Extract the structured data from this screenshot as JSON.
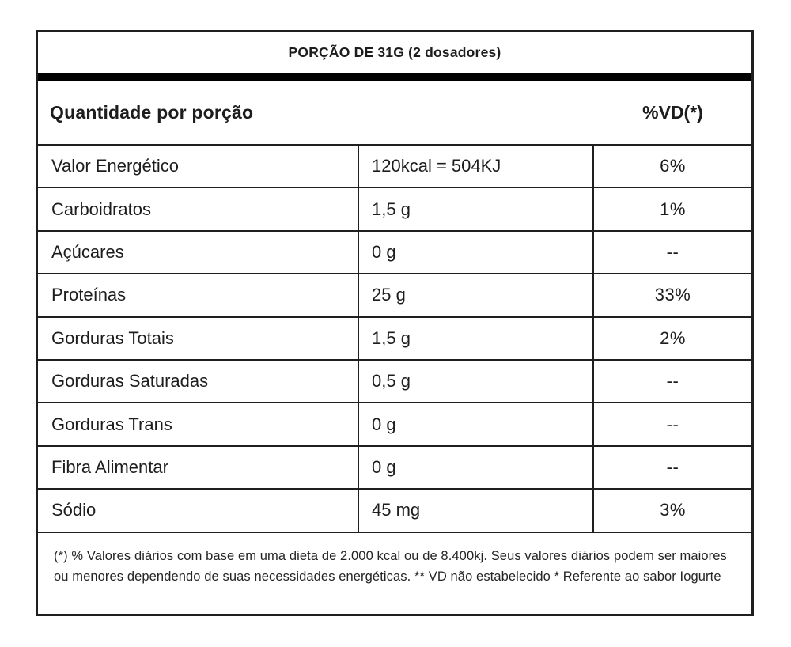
{
  "header": {
    "portion_title": "PORÇÃO DE 31G (2 dosadores)",
    "quantity_column_label": "Quantidade por porção",
    "dv_column_label": "%VD(*)"
  },
  "rows": [
    {
      "label": "Valor Energético",
      "value": "120kcal = 504KJ",
      "vd": "6%"
    },
    {
      "label": "Carboidratos",
      "value": "1,5 g",
      "vd": "1%"
    },
    {
      "label": "Açúcares",
      "value": "0 g",
      "vd": "--"
    },
    {
      "label": "Proteínas",
      "value": "25 g",
      "vd": "33%"
    },
    {
      "label": "Gorduras Totais",
      "value": "1,5 g",
      "vd": "2%"
    },
    {
      "label": "Gorduras Saturadas",
      "value": "0,5 g",
      "vd": "--"
    },
    {
      "label": "Gorduras Trans",
      "value": "0 g",
      "vd": "--"
    },
    {
      "label": "Fibra Alimentar",
      "value": "0 g",
      "vd": "--"
    },
    {
      "label": "Sódio",
      "value": "45 mg",
      "vd": "3%"
    }
  ],
  "footnote": "(*) % Valores diários com base em uma dieta de 2.000 kcal ou de 8.400kj. Seus valores diários podem ser maiores ou menores dependendo de suas necessidades energéticas. ** VD não estabelecido * Referente ao sabor Iogurte",
  "colors": {
    "border": "#1f1f1f",
    "bar": "#000000",
    "text": "#1d1d1d",
    "bg": "#ffffff"
  }
}
